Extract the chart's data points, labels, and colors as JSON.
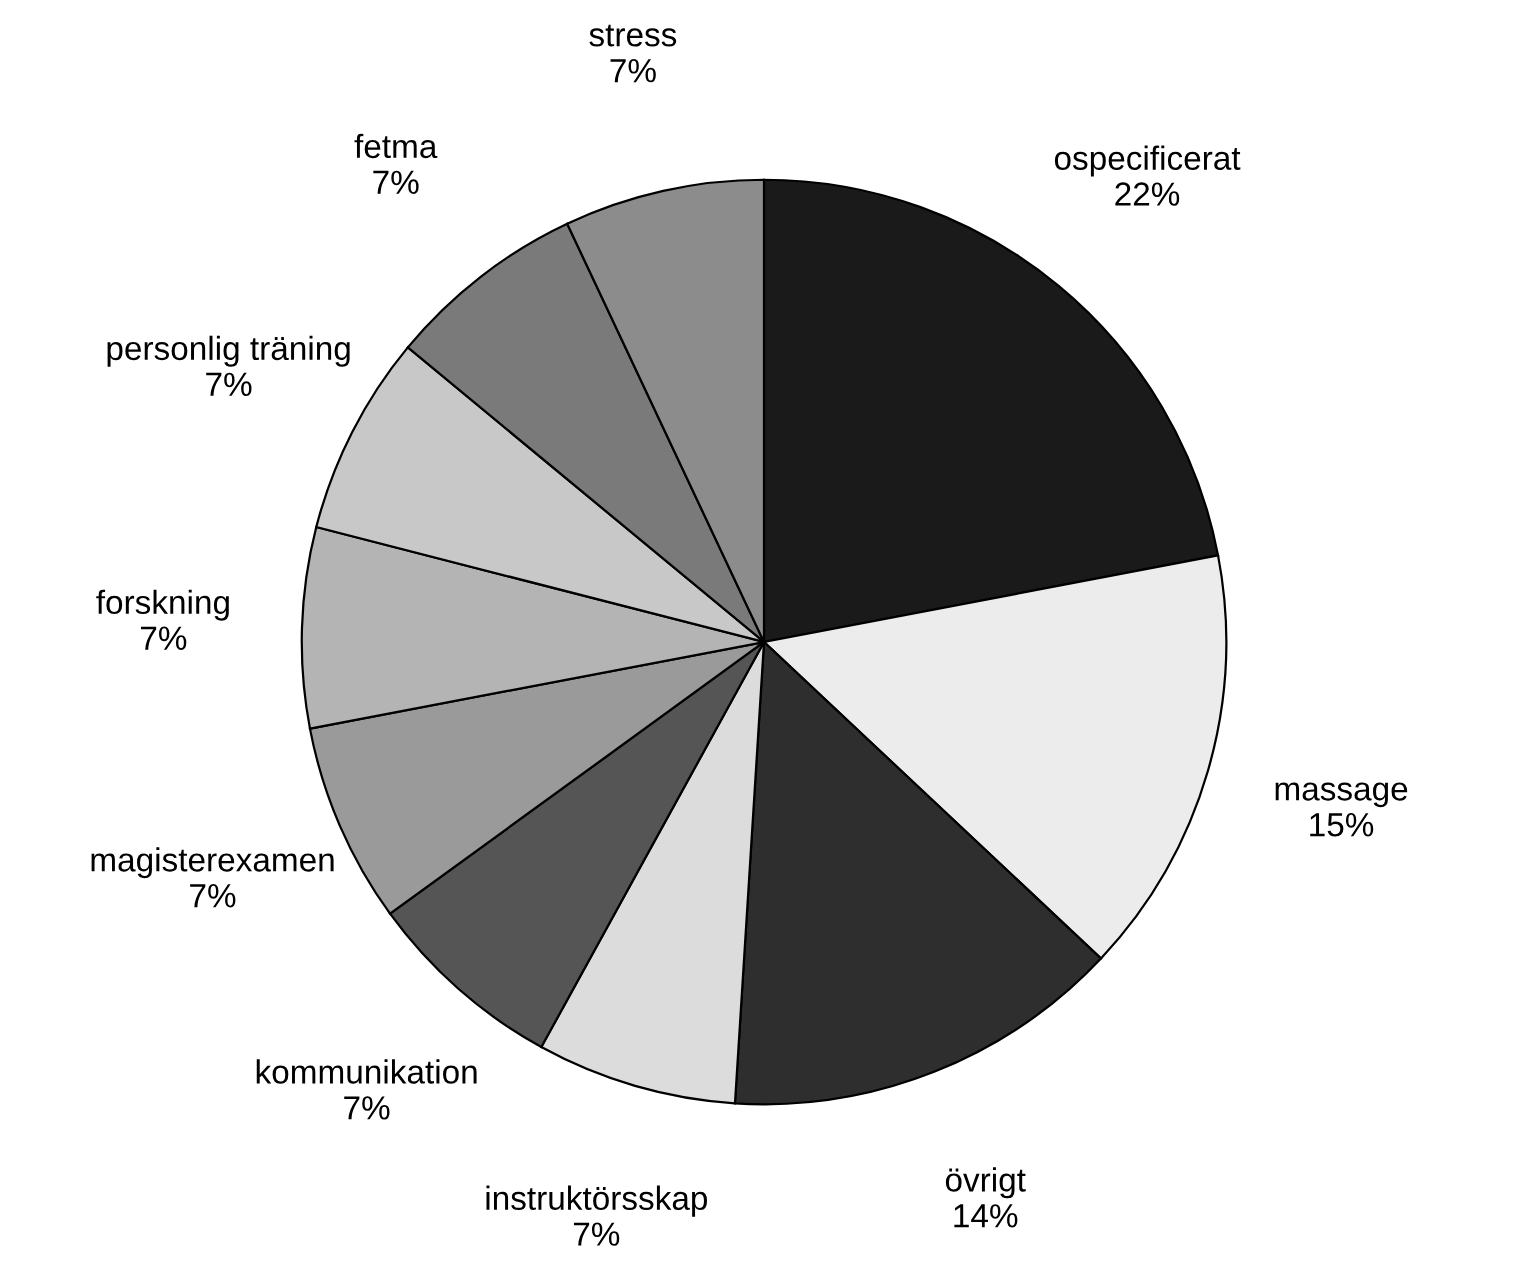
{
  "chart_data": {
    "type": "pie",
    "categories": [
      "ospecificerat",
      "massage",
      "övrigt",
      "instruktörsskap",
      "kommunikation",
      "magisterexamen",
      "forskning",
      "personlig träning",
      "fetma",
      "stress"
    ],
    "values": [
      22,
      15,
      14,
      7,
      7,
      7,
      7,
      7,
      7,
      7
    ],
    "value_labels": [
      "22%",
      "15%",
      "14%",
      "7%",
      "7%",
      "7%",
      "7%",
      "7%",
      "7%",
      "7%"
    ],
    "colors": [
      "#1a1a1a",
      "#ececec",
      "#2e2e2e",
      "#dcdcdc",
      "#555555",
      "#9a9a9a",
      "#b4b4b4",
      "#c8c8c8",
      "#7a7a7a",
      "#8c8c8c"
    ],
    "legend": false
  }
}
